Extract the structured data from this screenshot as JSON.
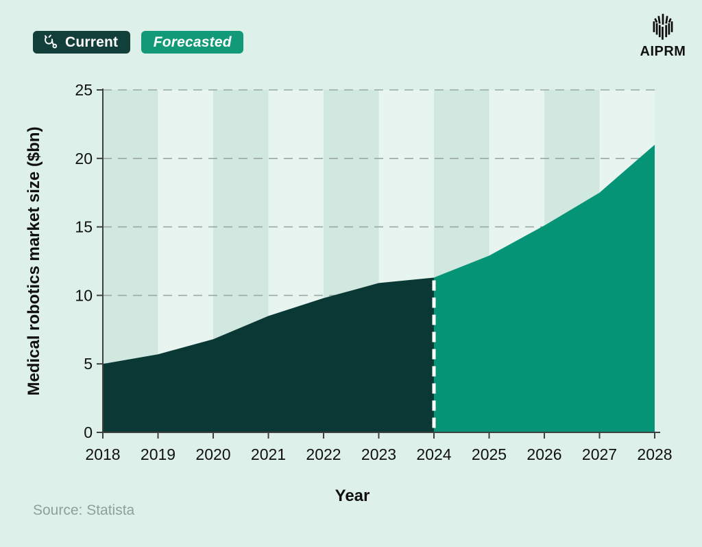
{
  "header": {
    "legend": [
      {
        "label": "Current",
        "icon": "stethoscope-icon"
      },
      {
        "label": "Forecasted"
      }
    ],
    "brand": "AIPRM"
  },
  "chart_data": {
    "type": "area",
    "title": "",
    "xlabel": "Year",
    "ylabel": "Medical robotics market size ($bn)",
    "xlim": [
      2018,
      2028
    ],
    "ylim": [
      0,
      25
    ],
    "xticks": [
      2018,
      2019,
      2020,
      2021,
      2022,
      2023,
      2024,
      2025,
      2026,
      2027,
      2028
    ],
    "yticks": [
      0,
      5,
      10,
      15,
      20,
      25
    ],
    "grid": "horizontal-dashed",
    "legend_position": "top-left",
    "forecast_divider_x": 2024,
    "series": [
      {
        "name": "Current",
        "x": [
          2018,
          2019,
          2020,
          2021,
          2022,
          2023,
          2024
        ],
        "values": [
          5.0,
          5.7,
          6.8,
          8.5,
          9.8,
          10.9,
          11.3
        ],
        "color": "#0a3834"
      },
      {
        "name": "Forecasted",
        "x": [
          2024,
          2025,
          2026,
          2027,
          2028
        ],
        "values": [
          11.3,
          12.9,
          15.1,
          17.5,
          21.0
        ],
        "color": "#069476"
      }
    ]
  },
  "footer": {
    "source": "Source: Statista"
  },
  "colors": {
    "background": "#def0ea",
    "stripe_dark": "#d1e8e1",
    "stripe_light": "#e7f4ef",
    "current_fill": "#0a3834",
    "forecast_fill": "#069476",
    "legend_current_bg": "#133f3b",
    "legend_forecast_bg": "#129a78",
    "gridline": "#99a8a4",
    "axis": "#3f3f3f",
    "tick_text": "#101010",
    "divider": "#ffffff",
    "source_text": "#8da19c",
    "brand_text": "#111111"
  }
}
